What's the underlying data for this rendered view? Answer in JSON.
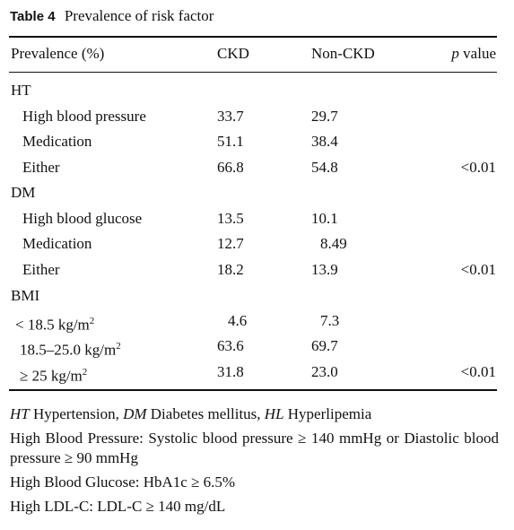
{
  "caption": {
    "label": "Table 4",
    "title": "Prevalence of risk factor"
  },
  "header": {
    "col1": "Prevalence (%)",
    "col2": "CKD",
    "col3": "Non-CKD",
    "col4_italic": "p",
    "col4_rest": " value"
  },
  "groups": [
    {
      "name": "HT",
      "rows": [
        {
          "label": "High blood pressure",
          "ckd": "33.7",
          "non_ckd": "29.7",
          "p": ""
        },
        {
          "label": "Medication",
          "ckd": "51.1",
          "non_ckd": "38.4",
          "p": ""
        },
        {
          "label": "Either",
          "ckd": "66.8",
          "non_ckd": "54.8",
          "p": "<0.01"
        }
      ]
    },
    {
      "name": "DM",
      "rows": [
        {
          "label": "High blood glucose",
          "ckd": "13.5",
          "non_ckd": "10.1",
          "p": ""
        },
        {
          "label": "Medication",
          "ckd": "12.7",
          "non_ckd": "8.49",
          "p": ""
        },
        {
          "label": "Either",
          "ckd": "18.2",
          "non_ckd": "13.9",
          "p": "<0.01"
        }
      ]
    },
    {
      "name": "BMI",
      "rows": [
        {
          "label_main": "< 18.5 kg/m",
          "label_sup": "2",
          "ckd": "4.6",
          "non_ckd": "7.3",
          "p": ""
        },
        {
          "label_main": "18.5–25.0 kg/m",
          "label_sup": "2",
          "ckd": "63.6",
          "non_ckd": "69.7",
          "p": ""
        },
        {
          "label_main": "≥ 25 kg/m",
          "label_sup": "2",
          "ckd": "31.8",
          "non_ckd": "23.0",
          "p": "<0.01"
        }
      ]
    }
  ],
  "notes": {
    "abbrev": [
      {
        "abbr": "HT",
        "full": " Hypertension, "
      },
      {
        "abbr": "DM",
        "full": " Diabetes mellitus, "
      },
      {
        "abbr": "HL",
        "full": " Hyperlipemia"
      }
    ],
    "line2": "High Blood Pressure: Systolic blood pressure ≥ 140 mmHg or Diastolic blood pressure ≥ 90 mmHg",
    "line3": "High Blood Glucose: HbA1c ≥ 6.5%",
    "line4": "High LDL-C: LDL-C ≥ 140 mg/dL"
  }
}
